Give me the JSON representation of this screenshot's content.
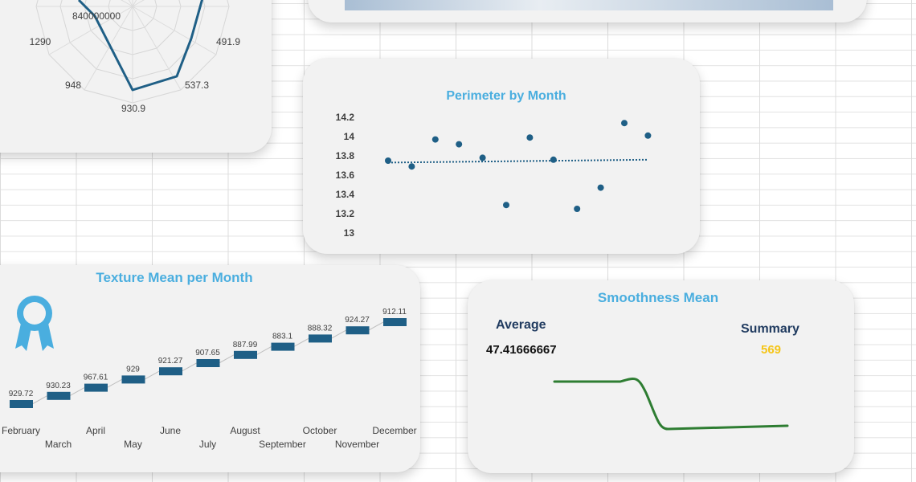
{
  "chart_data": [
    {
      "type": "radar",
      "tick_labels": [
        "840000000",
        "491.9",
        "537.3",
        "930.9",
        "948",
        "1290"
      ],
      "line_color": "#1f5f86"
    },
    {
      "type": "area",
      "fill_gradient": [
        "#a9bed4",
        "#e8edf2"
      ]
    },
    {
      "type": "scatter",
      "title": "Perimeter by Month",
      "y": [
        13.75,
        13.69,
        13.97,
        13.92,
        13.78,
        13.29,
        13.99,
        13.76,
        13.25,
        13.47,
        14.14,
        14.01
      ],
      "ylim": [
        13,
        14.2
      ],
      "yticks": [
        "14.2",
        "14",
        "13.8",
        "13.6",
        "13.4",
        "13.2",
        "13"
      ],
      "trendline": [
        13.73,
        13.76
      ],
      "color": "#1f5f86"
    },
    {
      "type": "line",
      "title": "Texture Mean per Month",
      "categories": [
        "February",
        "March",
        "April",
        "May",
        "June",
        "July",
        "August",
        "September",
        "October",
        "November",
        "December"
      ],
      "values": [
        929.72,
        930.23,
        967.61,
        929,
        921.27,
        907.65,
        887.99,
        883.1,
        888.32,
        924.27,
        912.11
      ],
      "value_labels": [
        "929.72",
        "930.23",
        "967.61",
        "929",
        "921.27",
        "907.65",
        "887.99",
        "883.1",
        "888.32",
        "924.27",
        "912.11"
      ],
      "marker_color": "#1f5f86",
      "icon": "award-ribbon-icon"
    },
    {
      "type": "line",
      "title": "Smoothness Mean",
      "color": "#2e7d32"
    }
  ],
  "kpi": {
    "average_label": "Average",
    "average_value": "47.41666667",
    "summary_label": "Summary",
    "summary_value": "569",
    "summary_color": "#f5c518"
  }
}
